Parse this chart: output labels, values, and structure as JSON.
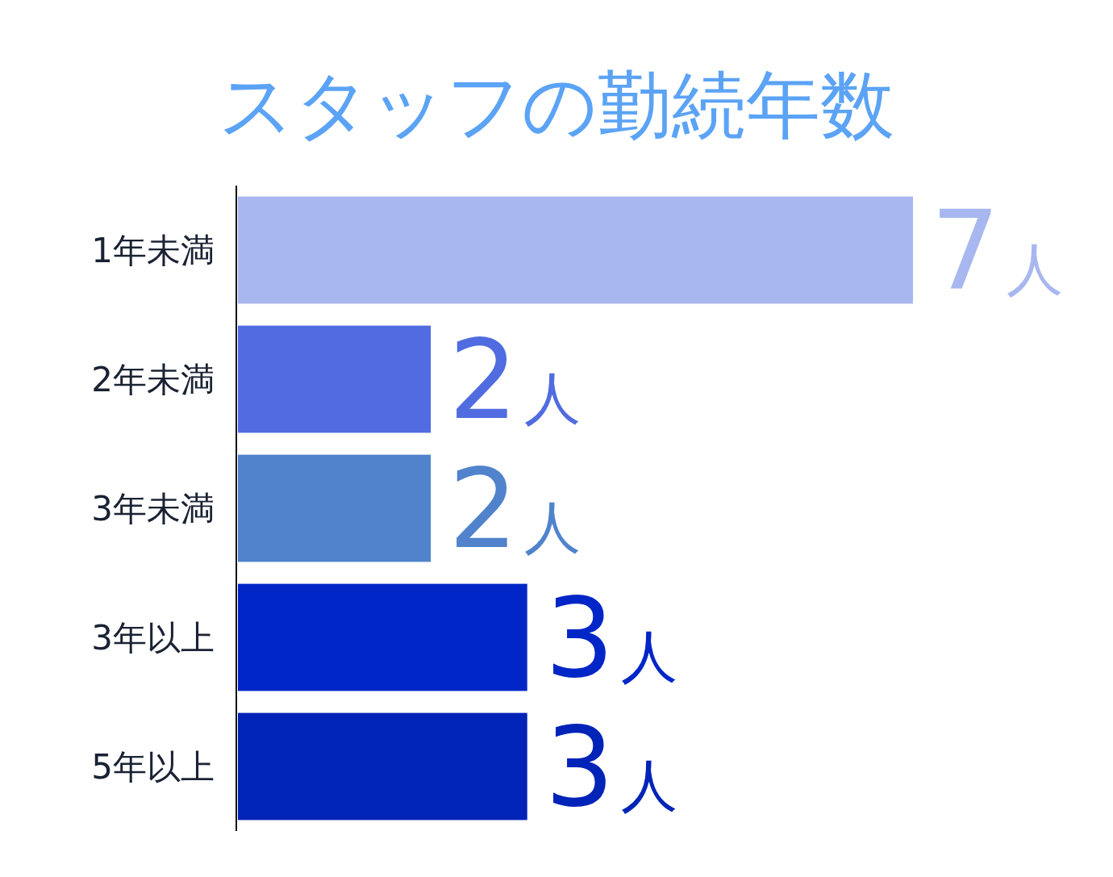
{
  "chart_data": {
    "type": "bar",
    "orientation": "horizontal",
    "title": "スタッフの勤続年数",
    "categories": [
      "1年未満",
      "2年未満",
      "3年未満",
      "3年以上",
      "5年以上"
    ],
    "values": [
      7,
      2,
      2,
      3,
      3
    ],
    "colors": [
      "#a8b7ef",
      "#506ce0",
      "#5083cb",
      "#0026c8",
      "#0023b8"
    ],
    "value_labels": [
      "7人",
      "2人",
      "2人",
      "3人",
      "3人"
    ]
  }
}
